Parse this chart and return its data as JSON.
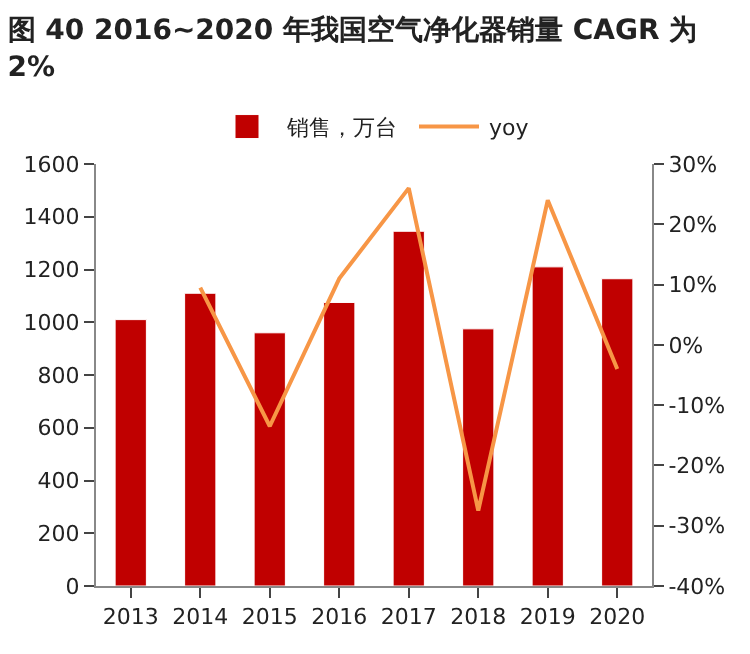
{
  "chart_data": {
    "type": "bar",
    "title": "图 40 2016~2020 年我国空气净化器销量 CAGR 为 2%",
    "categories": [
      "2013",
      "2014",
      "2015",
      "2016",
      "2017",
      "2018",
      "2019",
      "2020"
    ],
    "series": [
      {
        "name": "销售，万台",
        "color": "#c00000",
        "values": [
          1010,
          1110,
          960,
          1075,
          1345,
          975,
          1210,
          1165
        ]
      },
      {
        "name": "yoy",
        "type": "line",
        "axis": "y2",
        "color": "#f79646",
        "values": [
          null,
          9.5,
          -13.5,
          11,
          26,
          -27.5,
          24,
          -4
        ]
      }
    ],
    "ylim": [
      0,
      1600
    ],
    "yticks": [
      0,
      200,
      400,
      600,
      800,
      1000,
      1200,
      1400,
      1600
    ],
    "y2lim": [
      -40,
      30
    ],
    "y2ticks": [
      {
        "value": -40,
        "label": "-40%"
      },
      {
        "value": -30,
        "label": "-30%"
      },
      {
        "value": -20,
        "label": "-20%"
      },
      {
        "value": -10,
        "label": "-10%"
      },
      {
        "value": 0,
        "label": "0%"
      },
      {
        "value": 10,
        "label": "10%"
      },
      {
        "value": 20,
        "label": "20%"
      },
      {
        "value": 30,
        "label": "30%"
      }
    ],
    "grid": false,
    "legend": "top",
    "marker": "none",
    "line_style": "solid"
  }
}
